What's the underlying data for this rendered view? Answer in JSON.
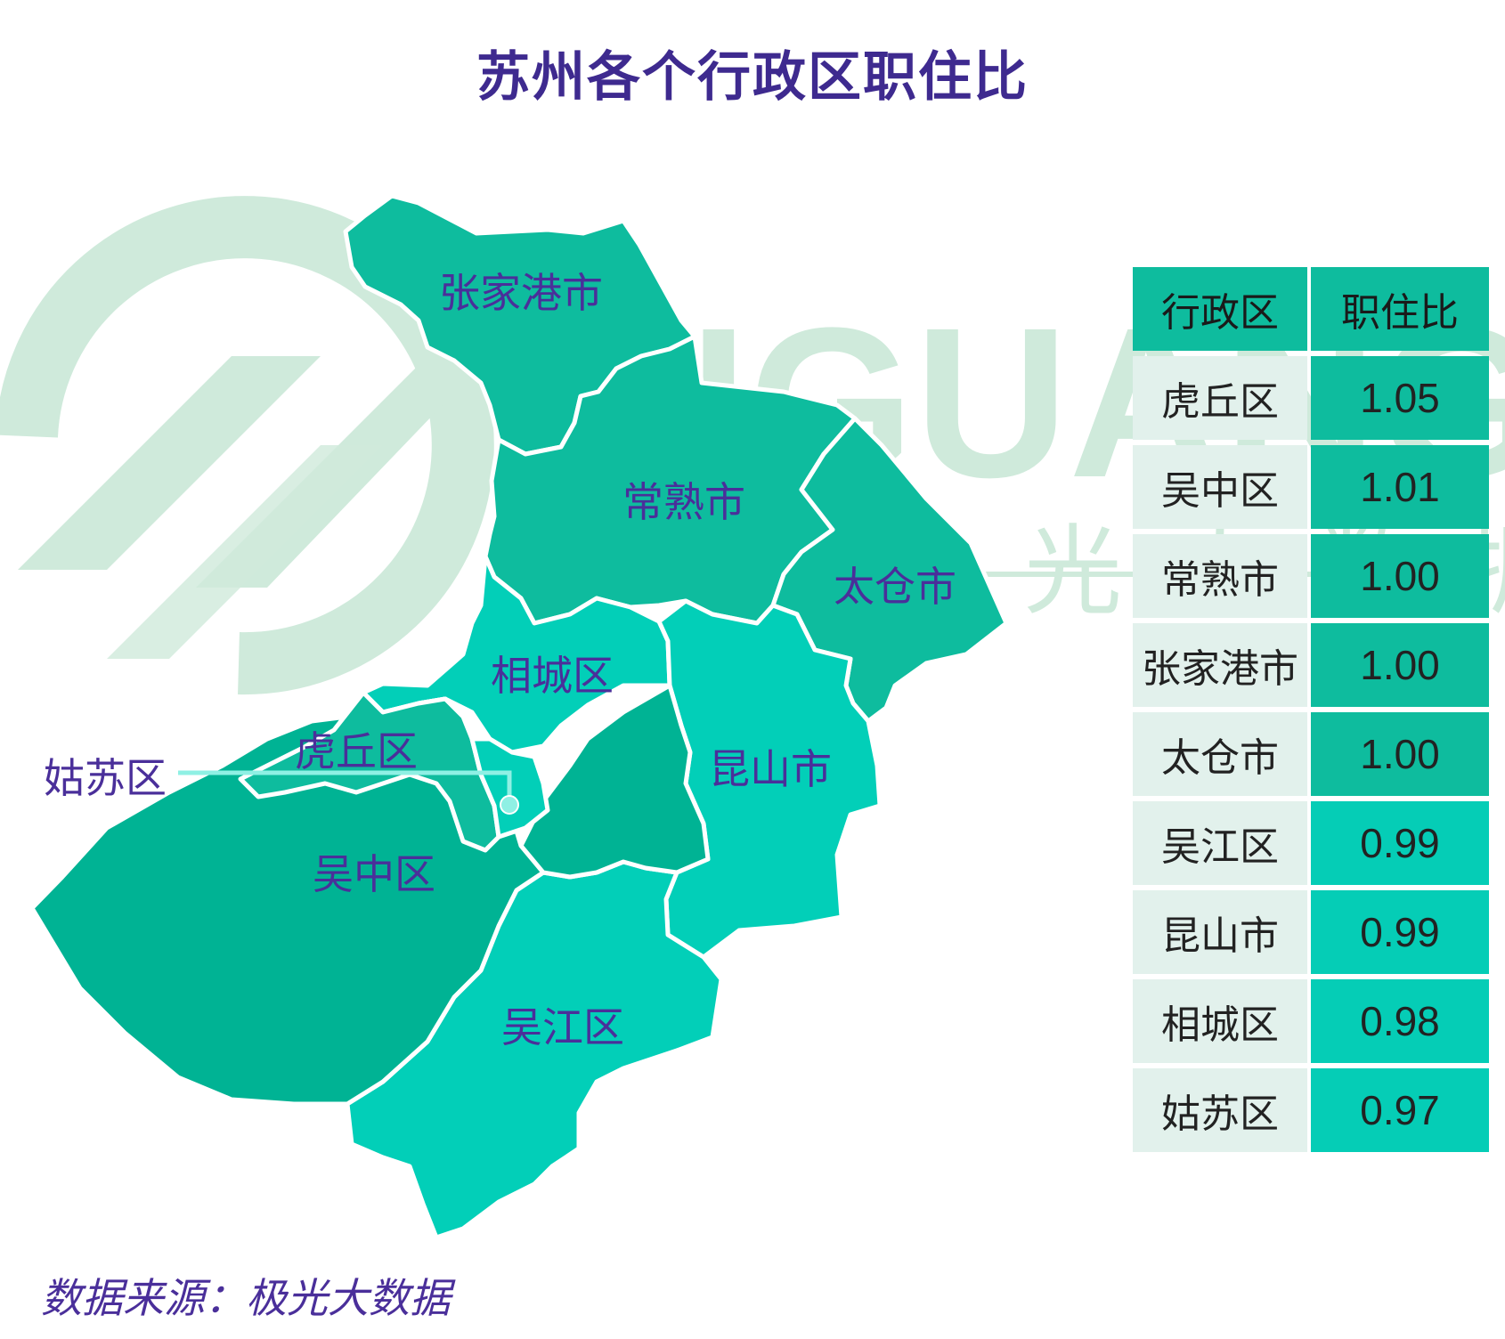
{
  "title": "苏州各个行政区职住比",
  "watermark": {
    "latin": "JIGUANG",
    "cn": "极 光 大 数 据"
  },
  "map": {
    "regions": [
      {
        "name": "张家港市",
        "value": 1.0,
        "color": "#0ebc9e"
      },
      {
        "name": "常熟市",
        "value": 1.0,
        "color": "#0ebc9e"
      },
      {
        "name": "太仓市",
        "value": 1.0,
        "color": "#0ebc9e"
      },
      {
        "name": "相城区",
        "value": 0.98,
        "color": "#02cfb8"
      },
      {
        "name": "昆山市",
        "value": 0.99,
        "color": "#02cfb8"
      },
      {
        "name": "虎丘区",
        "value": 1.05,
        "color": "#0ebc9e"
      },
      {
        "name": "吴中区",
        "value": 1.01,
        "color": "#00b394"
      },
      {
        "name": "吴江区",
        "value": 0.99,
        "color": "#02cfb8"
      },
      {
        "name": "姑苏区",
        "value": 0.97,
        "color": "#02cfb8"
      }
    ],
    "callout_label": "姑苏区"
  },
  "table": {
    "headers": [
      "行政区",
      "职住比"
    ],
    "rows": [
      {
        "name": "虎丘区",
        "value": "1.05",
        "color": "#0ebc9e"
      },
      {
        "name": "吴中区",
        "value": "1.01",
        "color": "#0ebc9e"
      },
      {
        "name": "常熟市",
        "value": "1.00",
        "color": "#0ebc9e"
      },
      {
        "name": "张家港市",
        "value": "1.00",
        "color": "#0ebc9e"
      },
      {
        "name": "太仓市",
        "value": "1.00",
        "color": "#0ebc9e"
      },
      {
        "name": "吴江区",
        "value": "0.99",
        "color": "#05cdb6"
      },
      {
        "name": "昆山市",
        "value": "0.99",
        "color": "#05cdb6"
      },
      {
        "name": "相城区",
        "value": "0.98",
        "color": "#05cdb6"
      },
      {
        "name": "姑苏区",
        "value": "0.97",
        "color": "#05cdb6"
      }
    ],
    "header_color": "#0ebc9e"
  },
  "source": "数据来源：极光大数据",
  "colors": {
    "title": "#3e2a8f",
    "label": "#4a2f9a",
    "border": "#ffffff",
    "watermark": "#cfeadb",
    "callout": "#8ff0e4"
  }
}
